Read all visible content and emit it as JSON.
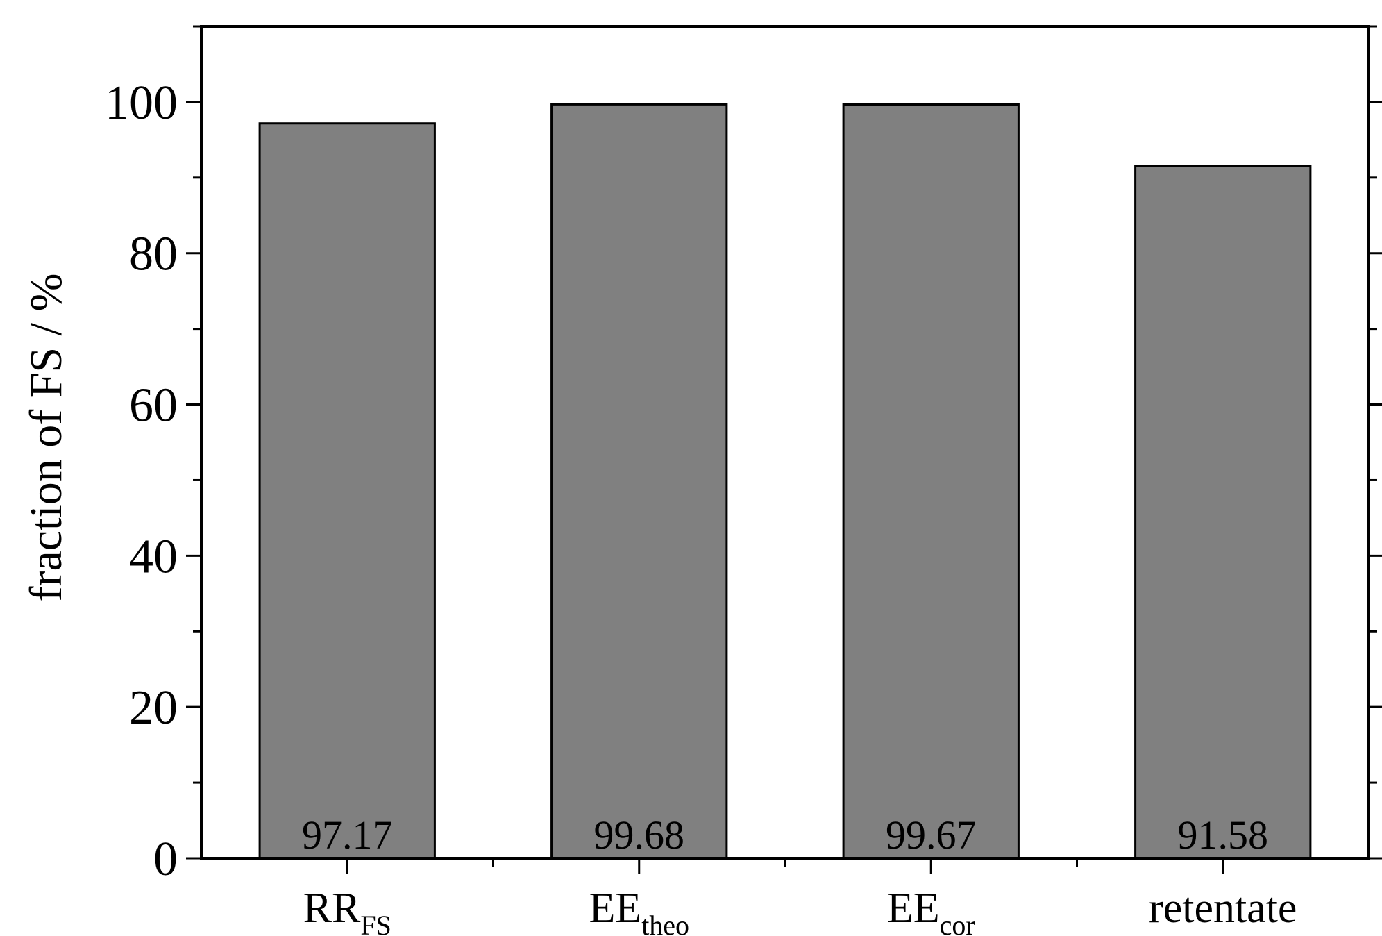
{
  "chart_data": {
    "type": "bar",
    "categories": [
      {
        "main": "RR",
        "sub": "FS"
      },
      {
        "main": "EE",
        "sub": "theo"
      },
      {
        "main": "EE",
        "sub": "cor"
      },
      {
        "main": "retentate",
        "sub": ""
      }
    ],
    "values": [
      97.17,
      99.68,
      99.67,
      91.58
    ],
    "data_labels": [
      "97.17",
      "99.68",
      "99.67",
      "91.58"
    ],
    "title": "",
    "xlabel": "",
    "ylabel": "fraction of FS / %",
    "ylim": [
      0,
      110
    ],
    "yticks": [
      0,
      20,
      40,
      60,
      80,
      100
    ],
    "grid": false,
    "bar_color": "#808080"
  }
}
